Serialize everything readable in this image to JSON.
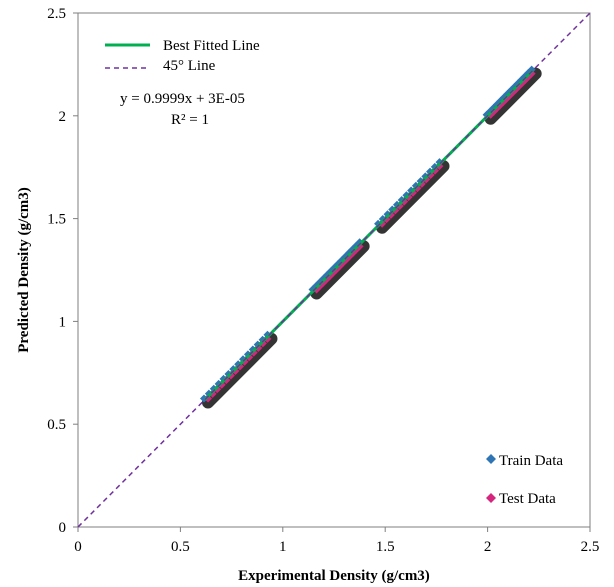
{
  "chart_data": {
    "type": "scatter",
    "xlabel": "Experimental Density (g/cm3)",
    "ylabel": "Predicted Density (g/cm3)",
    "xlim": [
      0,
      2.5
    ],
    "ylim": [
      0,
      2.5
    ],
    "xticks": [
      "0",
      "0.5",
      "1",
      "1.5",
      "2",
      "2.5"
    ],
    "yticks": [
      "0",
      "0.5",
      "1",
      "1.5",
      "2",
      "2.5"
    ],
    "grid": false,
    "lines": [
      {
        "name": "Best Fitted Line",
        "color": "#00b050",
        "style": "solid",
        "slope": 0.9999,
        "intercept": 3e-05,
        "x_range": [
          0.62,
          2.22
        ]
      },
      {
        "name": "45° Line",
        "color": "#7030a0",
        "style": "dashed",
        "slope": 1,
        "intercept": 0,
        "x_range": [
          0,
          2.5
        ]
      }
    ],
    "equation": "y = 0.9999x + 3E-05",
    "r_squared": "R² = 1",
    "series": [
      {
        "name": "Train Data",
        "color": "#2e75b6",
        "marker": "diamond",
        "x_ranges": [
          [
            0.62,
            0.93
          ],
          [
            1.15,
            1.38
          ],
          [
            1.47,
            1.77
          ],
          [
            2.0,
            2.22
          ]
        ]
      },
      {
        "name": "Test Data",
        "color": "#d6257f",
        "marker": "diamond",
        "x_ranges": [
          [
            0.63,
            0.92
          ],
          [
            1.16,
            1.37
          ],
          [
            1.48,
            1.76
          ],
          [
            2.01,
            2.21
          ]
        ]
      }
    ],
    "legend_top": [
      "Best Fitted Line",
      "45° Line"
    ],
    "legend_bottom": [
      "Train Data",
      "Test Data"
    ]
  }
}
